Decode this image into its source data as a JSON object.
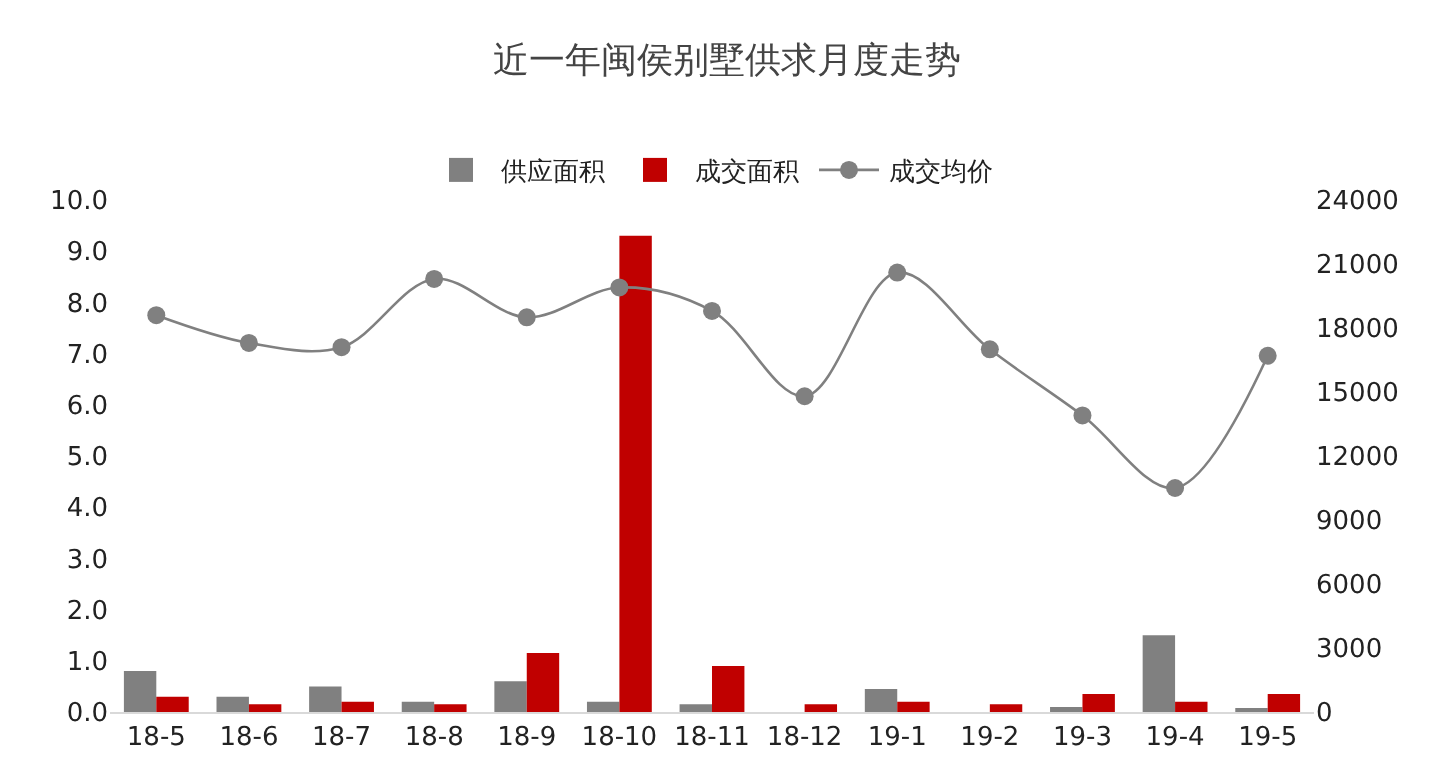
{
  "chart_data": {
    "type": "bar",
    "title": "近一年闽侯别墅供求月度走势",
    "categories": [
      "18-5",
      "18-6",
      "18-7",
      "18-8",
      "18-9",
      "18-10",
      "18-11",
      "18-12",
      "19-1",
      "19-2",
      "19-3",
      "19-4",
      "19-5"
    ],
    "series": [
      {
        "name": "供应面积",
        "color": "#808080",
        "values": [
          0.8,
          0.3,
          0.5,
          0.2,
          0.6,
          0.2,
          0.15,
          0,
          0.45,
          0,
          0.1,
          1.5,
          0.05
        ]
      },
      {
        "name": "成交面积",
        "color": "#c00000",
        "values": [
          0.3,
          0.15,
          0.2,
          0.15,
          1.15,
          9.3,
          0.9,
          0.15,
          0.2,
          0.15,
          0.35,
          0.2,
          0.35
        ]
      },
      {
        "name": "成交均价",
        "color": "#808080",
        "type": "line",
        "axis": "y2",
        "marker": "circle",
        "values": [
          18600,
          17300,
          17100,
          20300,
          18500,
          19900,
          18800,
          14800,
          20600,
          17000,
          13900,
          10500,
          16700
        ]
      }
    ],
    "ylim": [
      0,
      10
    ],
    "yticks": [
      {
        "value": 0,
        "label": "0.0"
      },
      {
        "value": 1,
        "label": "1.0"
      },
      {
        "value": 2,
        "label": "2.0"
      },
      {
        "value": 3,
        "label": "3.0"
      },
      {
        "value": 4,
        "label": "4.0"
      },
      {
        "value": 5,
        "label": "5.0"
      },
      {
        "value": 6,
        "label": "6.0"
      },
      {
        "value": 7,
        "label": "7.0"
      },
      {
        "value": 8,
        "label": "8.0"
      },
      {
        "value": 9,
        "label": "9.0"
      },
      {
        "value": 10,
        "label": "10.0"
      }
    ],
    "y2lim": [
      0,
      24000
    ],
    "y2ticks": [
      0,
      3000,
      6000,
      9000,
      12000,
      15000,
      18000,
      21000,
      24000
    ],
    "grid": false,
    "legend": "top"
  }
}
